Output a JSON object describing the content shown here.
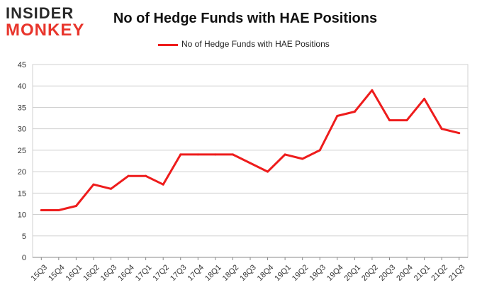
{
  "logo": {
    "line1": "INSIDER",
    "line2": "MONKEY"
  },
  "colors": {
    "series": "#ee1c1c",
    "grid": "#d0d0d0",
    "axis": "#888888"
  },
  "chart_data": {
    "type": "line",
    "title": "No of Hedge Funds with HAE Positions",
    "xlabel": "",
    "ylabel": "",
    "ylim": [
      0,
      45
    ],
    "yticks": [
      0,
      5,
      10,
      15,
      20,
      25,
      30,
      35,
      40,
      45
    ],
    "grid": true,
    "legend_position": "top-center",
    "categories": [
      "15Q3",
      "15Q4",
      "16Q1",
      "16Q2",
      "16Q3",
      "16Q4",
      "17Q1",
      "17Q2",
      "17Q3",
      "17Q4",
      "18Q1",
      "18Q2",
      "18Q3",
      "18Q4",
      "19Q1",
      "19Q2",
      "19Q3",
      "19Q4",
      "20Q1",
      "20Q2",
      "20Q3",
      "20Q4",
      "21Q1",
      "21Q2",
      "21Q3"
    ],
    "series": [
      {
        "name": "No of Hedge Funds with HAE Positions",
        "values": [
          11,
          11,
          12,
          17,
          16,
          19,
          19,
          17,
          24,
          24,
          24,
          24,
          22,
          20,
          24,
          23,
          25,
          33,
          34,
          39,
          32,
          32,
          37,
          30,
          29
        ]
      }
    ]
  }
}
